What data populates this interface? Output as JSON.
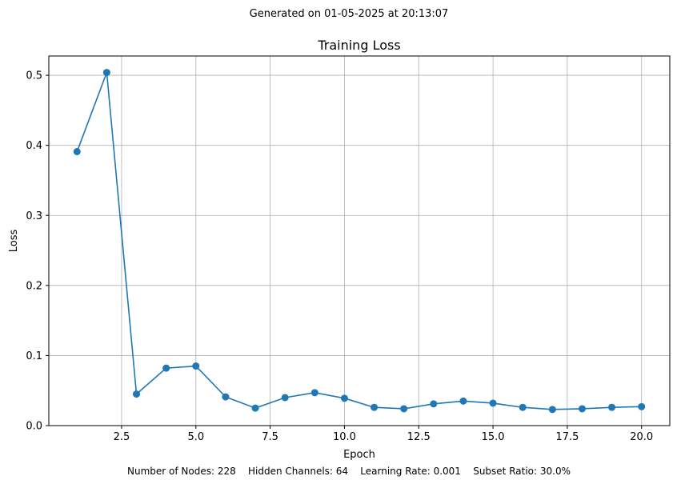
{
  "header": {
    "generated": "Generated on 01-05-2025 at 20:13:07"
  },
  "footer": {
    "params": "Number of Nodes: 228    Hidden Channels: 64    Learning Rate: 0.001    Subset Ratio: 30.0%"
  },
  "chart_data": {
    "type": "line",
    "title": "Training Loss",
    "xlabel": "Epoch",
    "ylabel": "Loss",
    "xlim": [
      0.05,
      20.95
    ],
    "ylim": [
      0,
      0.5275
    ],
    "xticks": [
      2.5,
      5.0,
      7.5,
      10.0,
      12.5,
      15.0,
      17.5,
      20.0
    ],
    "xtick_labels": [
      "2.5",
      "5.0",
      "7.5",
      "10.0",
      "12.5",
      "15.0",
      "17.5",
      "20.0"
    ],
    "yticks": [
      0.0,
      0.1,
      0.2,
      0.3,
      0.4,
      0.5
    ],
    "ytick_labels": [
      "0.0",
      "0.1",
      "0.2",
      "0.3",
      "0.4",
      "0.5"
    ],
    "grid": true,
    "marker": "circle",
    "color": "#1f77b4",
    "series": [
      {
        "x": [
          1,
          2,
          3,
          4,
          5,
          6,
          7,
          8,
          9,
          10,
          11,
          12,
          13,
          14,
          15,
          16,
          17,
          18,
          19,
          20
        ],
        "values": [
          0.391,
          0.504,
          0.045,
          0.082,
          0.085,
          0.041,
          0.025,
          0.04,
          0.047,
          0.039,
          0.026,
          0.024,
          0.031,
          0.035,
          0.032,
          0.026,
          0.023,
          0.024,
          0.026,
          0.027
        ]
      }
    ]
  }
}
